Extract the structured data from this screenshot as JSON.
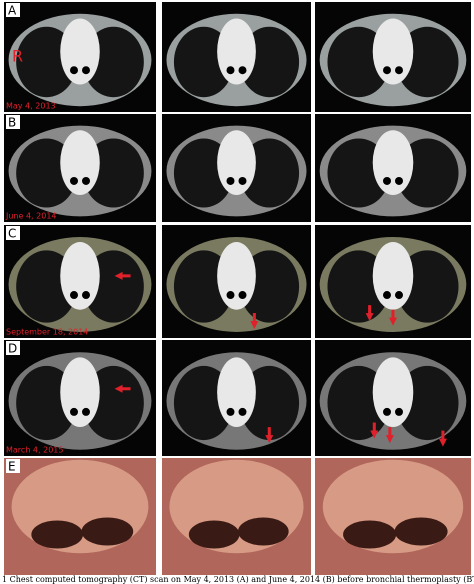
{
  "panels": [
    {
      "label": "A",
      "date": "May 4, 2013"
    },
    {
      "label": "B",
      "date": "June 4, 2014"
    },
    {
      "label": "C",
      "date": "September 18, 2014"
    },
    {
      "label": "D",
      "date": "March 4, 2015"
    },
    {
      "label": "E"
    }
  ],
  "side_marker": "R",
  "caption": "1 Chest computed tomography (CT) scan on May 4, 2013 (A) and June 4, 2014 (B) before bronchial thermoplasty (BT)"
}
